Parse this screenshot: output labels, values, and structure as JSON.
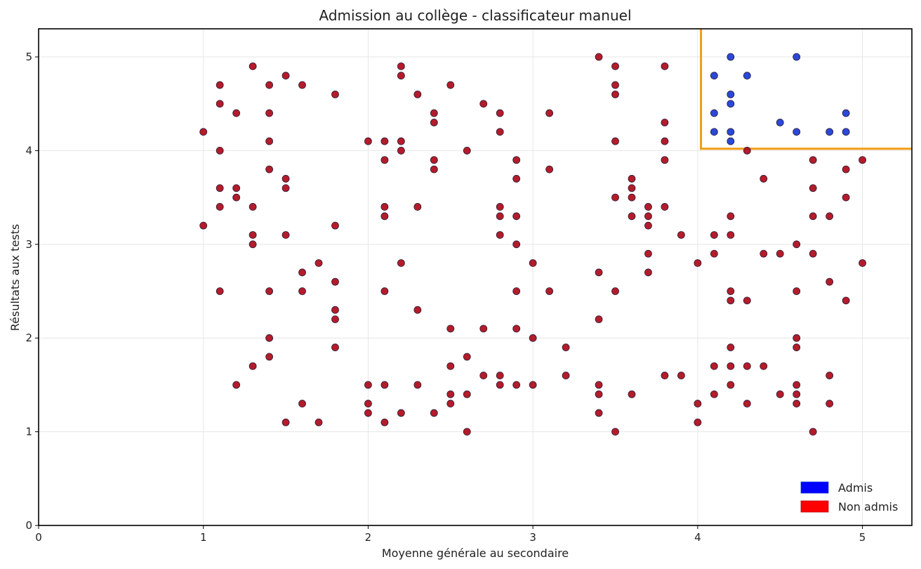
{
  "chart_data": {
    "type": "scatter",
    "title": "Admission au collège - classificateur manuel",
    "xlabel": "Moyenne générale au secondaire",
    "ylabel": "Résultats aux tests",
    "xlim": [
      0,
      5.3
    ],
    "ylim": [
      0,
      5.3
    ],
    "xticks": [
      "0",
      "1",
      "2",
      "3",
      "4",
      "5"
    ],
    "yticks": [
      "0",
      "1",
      "2",
      "3",
      "4",
      "5"
    ],
    "grid": true,
    "legend_position": "bottom-right",
    "decision_boundary": {
      "x": 4.02,
      "y": 4.02,
      "color": "#f39c12"
    },
    "series": [
      {
        "name": "Admis",
        "color": "#1f3fd6",
        "legend_color": "#0000ff",
        "points": [
          [
            4.1,
            4.8
          ],
          [
            4.2,
            5.0
          ],
          [
            4.3,
            4.8
          ],
          [
            4.6,
            5.0
          ],
          [
            4.2,
            4.6
          ],
          [
            4.2,
            4.5
          ],
          [
            4.1,
            4.4
          ],
          [
            4.5,
            4.3
          ],
          [
            4.9,
            4.4
          ],
          [
            4.1,
            4.2
          ],
          [
            4.2,
            4.2
          ],
          [
            4.6,
            4.2
          ],
          [
            4.8,
            4.2
          ],
          [
            4.9,
            4.2
          ],
          [
            4.2,
            4.1
          ]
        ]
      },
      {
        "name": "Non admis",
        "color": "#b0101e",
        "legend_color": "#ff0000",
        "points": [
          [
            1.0,
            4.2
          ],
          [
            1.0,
            3.2
          ],
          [
            1.1,
            4.7
          ],
          [
            1.1,
            4.5
          ],
          [
            1.1,
            4.0
          ],
          [
            1.1,
            3.6
          ],
          [
            1.1,
            3.4
          ],
          [
            1.1,
            2.5
          ],
          [
            1.2,
            4.4
          ],
          [
            1.2,
            3.6
          ],
          [
            1.2,
            3.5
          ],
          [
            1.2,
            1.5
          ],
          [
            1.3,
            4.9
          ],
          [
            1.3,
            3.4
          ],
          [
            1.3,
            3.1
          ],
          [
            1.3,
            3.0
          ],
          [
            1.3,
            1.7
          ],
          [
            1.4,
            4.7
          ],
          [
            1.4,
            4.4
          ],
          [
            1.4,
            4.1
          ],
          [
            1.4,
            3.8
          ],
          [
            1.4,
            2.5
          ],
          [
            1.4,
            2.0
          ],
          [
            1.4,
            1.8
          ],
          [
            1.5,
            4.8
          ],
          [
            1.5,
            3.7
          ],
          [
            1.5,
            3.6
          ],
          [
            1.5,
            3.1
          ],
          [
            1.5,
            1.1
          ],
          [
            1.6,
            4.7
          ],
          [
            1.6,
            2.7
          ],
          [
            1.6,
            2.5
          ],
          [
            1.6,
            1.3
          ],
          [
            1.7,
            2.8
          ],
          [
            1.7,
            1.1
          ],
          [
            1.8,
            4.6
          ],
          [
            1.8,
            3.2
          ],
          [
            1.8,
            2.6
          ],
          [
            1.8,
            2.3
          ],
          [
            1.8,
            2.2
          ],
          [
            1.8,
            1.9
          ],
          [
            2.0,
            4.1
          ],
          [
            2.0,
            1.5
          ],
          [
            2.0,
            1.3
          ],
          [
            2.0,
            1.2
          ],
          [
            2.1,
            4.1
          ],
          [
            2.1,
            3.9
          ],
          [
            2.1,
            3.4
          ],
          [
            2.1,
            3.3
          ],
          [
            2.1,
            2.5
          ],
          [
            2.1,
            1.5
          ],
          [
            2.1,
            1.1
          ],
          [
            2.2,
            4.9
          ],
          [
            2.2,
            4.8
          ],
          [
            2.2,
            4.1
          ],
          [
            2.2,
            4.0
          ],
          [
            2.2,
            2.8
          ],
          [
            2.2,
            1.2
          ],
          [
            2.3,
            4.6
          ],
          [
            2.3,
            3.4
          ],
          [
            2.3,
            2.3
          ],
          [
            2.3,
            1.5
          ],
          [
            2.4,
            4.4
          ],
          [
            2.4,
            4.3
          ],
          [
            2.4,
            3.9
          ],
          [
            2.4,
            3.8
          ],
          [
            2.4,
            1.2
          ],
          [
            2.5,
            4.7
          ],
          [
            2.5,
            2.1
          ],
          [
            2.5,
            1.7
          ],
          [
            2.5,
            1.4
          ],
          [
            2.5,
            1.3
          ],
          [
            2.6,
            4.0
          ],
          [
            2.6,
            1.8
          ],
          [
            2.6,
            1.4
          ],
          [
            2.6,
            1.0
          ],
          [
            2.7,
            4.5
          ],
          [
            2.7,
            2.1
          ],
          [
            2.7,
            1.6
          ],
          [
            2.8,
            4.4
          ],
          [
            2.8,
            4.2
          ],
          [
            2.8,
            3.4
          ],
          [
            2.8,
            3.3
          ],
          [
            2.8,
            3.1
          ],
          [
            2.8,
            1.6
          ],
          [
            2.8,
            1.5
          ],
          [
            2.9,
            3.9
          ],
          [
            2.9,
            3.7
          ],
          [
            2.9,
            3.3
          ],
          [
            2.9,
            3.0
          ],
          [
            2.9,
            2.5
          ],
          [
            2.9,
            2.1
          ],
          [
            2.9,
            1.5
          ],
          [
            3.0,
            2.8
          ],
          [
            3.0,
            2.0
          ],
          [
            3.0,
            1.5
          ],
          [
            3.1,
            4.4
          ],
          [
            3.1,
            3.8
          ],
          [
            3.1,
            2.5
          ],
          [
            3.2,
            1.9
          ],
          [
            3.2,
            1.6
          ],
          [
            3.4,
            5.0
          ],
          [
            3.4,
            2.7
          ],
          [
            3.4,
            2.2
          ],
          [
            3.4,
            1.5
          ],
          [
            3.4,
            1.4
          ],
          [
            3.4,
            1.2
          ],
          [
            3.5,
            4.9
          ],
          [
            3.5,
            4.7
          ],
          [
            3.5,
            4.6
          ],
          [
            3.5,
            4.1
          ],
          [
            3.5,
            3.5
          ],
          [
            3.5,
            2.5
          ],
          [
            3.5,
            1.0
          ],
          [
            3.6,
            3.7
          ],
          [
            3.6,
            3.6
          ],
          [
            3.6,
            3.5
          ],
          [
            3.6,
            3.3
          ],
          [
            3.6,
            1.4
          ],
          [
            3.7,
            3.4
          ],
          [
            3.7,
            3.3
          ],
          [
            3.7,
            3.2
          ],
          [
            3.7,
            2.9
          ],
          [
            3.7,
            2.7
          ],
          [
            3.8,
            4.9
          ],
          [
            3.8,
            4.3
          ],
          [
            3.8,
            4.1
          ],
          [
            3.8,
            3.9
          ],
          [
            3.8,
            3.4
          ],
          [
            3.8,
            1.6
          ],
          [
            3.9,
            3.1
          ],
          [
            3.9,
            1.6
          ],
          [
            4.0,
            2.8
          ],
          [
            4.0,
            1.3
          ],
          [
            4.0,
            1.1
          ],
          [
            4.1,
            3.1
          ],
          [
            4.1,
            2.9
          ],
          [
            4.1,
            1.7
          ],
          [
            4.1,
            1.4
          ],
          [
            4.2,
            3.3
          ],
          [
            4.2,
            3.1
          ],
          [
            4.2,
            2.5
          ],
          [
            4.2,
            2.4
          ],
          [
            4.2,
            1.9
          ],
          [
            4.2,
            1.7
          ],
          [
            4.2,
            1.5
          ],
          [
            4.3,
            4.0
          ],
          [
            4.3,
            2.4
          ],
          [
            4.3,
            1.7
          ],
          [
            4.3,
            1.3
          ],
          [
            4.4,
            3.7
          ],
          [
            4.4,
            2.9
          ],
          [
            4.4,
            1.7
          ],
          [
            4.5,
            2.9
          ],
          [
            4.5,
            1.4
          ],
          [
            4.6,
            3.0
          ],
          [
            4.6,
            2.5
          ],
          [
            4.6,
            2.0
          ],
          [
            4.6,
            1.9
          ],
          [
            4.6,
            1.5
          ],
          [
            4.6,
            1.4
          ],
          [
            4.6,
            1.3
          ],
          [
            4.7,
            3.9
          ],
          [
            4.7,
            3.6
          ],
          [
            4.7,
            3.3
          ],
          [
            4.7,
            2.9
          ],
          [
            4.7,
            1.0
          ],
          [
            4.8,
            3.3
          ],
          [
            4.8,
            2.6
          ],
          [
            4.8,
            1.6
          ],
          [
            4.8,
            1.3
          ],
          [
            4.9,
            3.8
          ],
          [
            4.9,
            3.5
          ],
          [
            4.9,
            2.4
          ],
          [
            5.0,
            3.9
          ],
          [
            5.0,
            2.8
          ]
        ]
      }
    ]
  }
}
